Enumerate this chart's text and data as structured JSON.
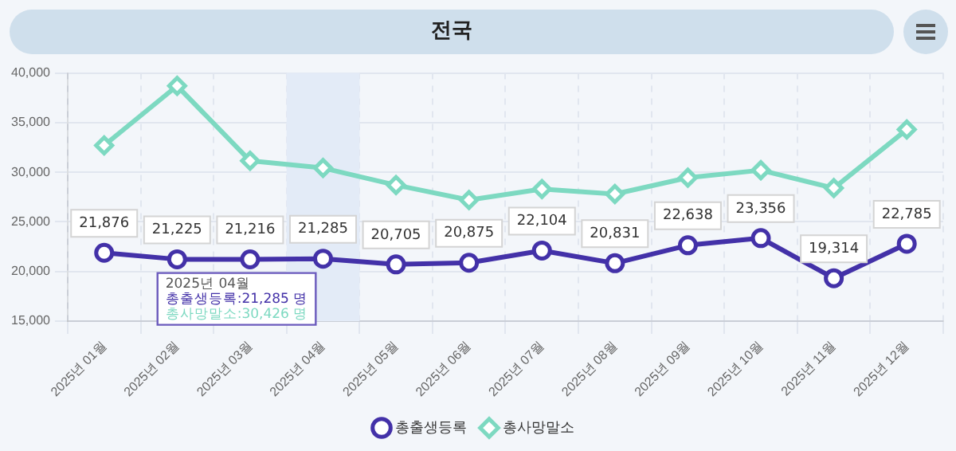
{
  "chart_data": {
    "type": "line",
    "title": "전국",
    "categories": [
      "2025년 01월",
      "2025년 02월",
      "2025년 03월",
      "2025년 04월",
      "2025년 05월",
      "2025년 06월",
      "2025년 07월",
      "2025년 08월",
      "2025년 09월",
      "2025년 10월",
      "2025년 11월",
      "2025년 12월"
    ],
    "series": [
      {
        "name": "총출생등록",
        "color": "#4331a8",
        "marker": "circle",
        "value_labels": [
          "21,876",
          "21,225",
          "21,216",
          "21,285",
          "20,705",
          "20,875",
          "22,104",
          "20,831",
          "22,638",
          "23,356",
          "19,314",
          "22,785"
        ],
        "values": [
          21876,
          21225,
          21216,
          21285,
          20705,
          20875,
          22104,
          20831,
          22638,
          23356,
          19314,
          22785
        ]
      },
      {
        "name": "총사망말소",
        "color": "#7dd9c1",
        "marker": "diamond",
        "values": [
          32700,
          38700,
          31150,
          30426,
          28700,
          27200,
          28300,
          27800,
          29450,
          30200,
          28400,
          34300
        ]
      }
    ],
    "ylim": [
      15000,
      40000
    ],
    "yticks": [
      {
        "value": 15000,
        "label": "15,000"
      },
      {
        "value": 20000,
        "label": "20,000"
      },
      {
        "value": 25000,
        "label": "25,000"
      },
      {
        "value": 30000,
        "label": "30,000"
      },
      {
        "value": 35000,
        "label": "35,000"
      },
      {
        "value": 40000,
        "label": "40,000"
      }
    ],
    "bands": [
      {
        "axis": "x",
        "from": "2025년 04월",
        "to": "2025년 04월",
        "color": "#e3ebf7"
      }
    ],
    "annotations": [
      "2025년 04월",
      "총출생등록:21,285 명",
      "총사망말소:30,426 명"
    ],
    "grid": true,
    "legend": "bottom"
  }
}
